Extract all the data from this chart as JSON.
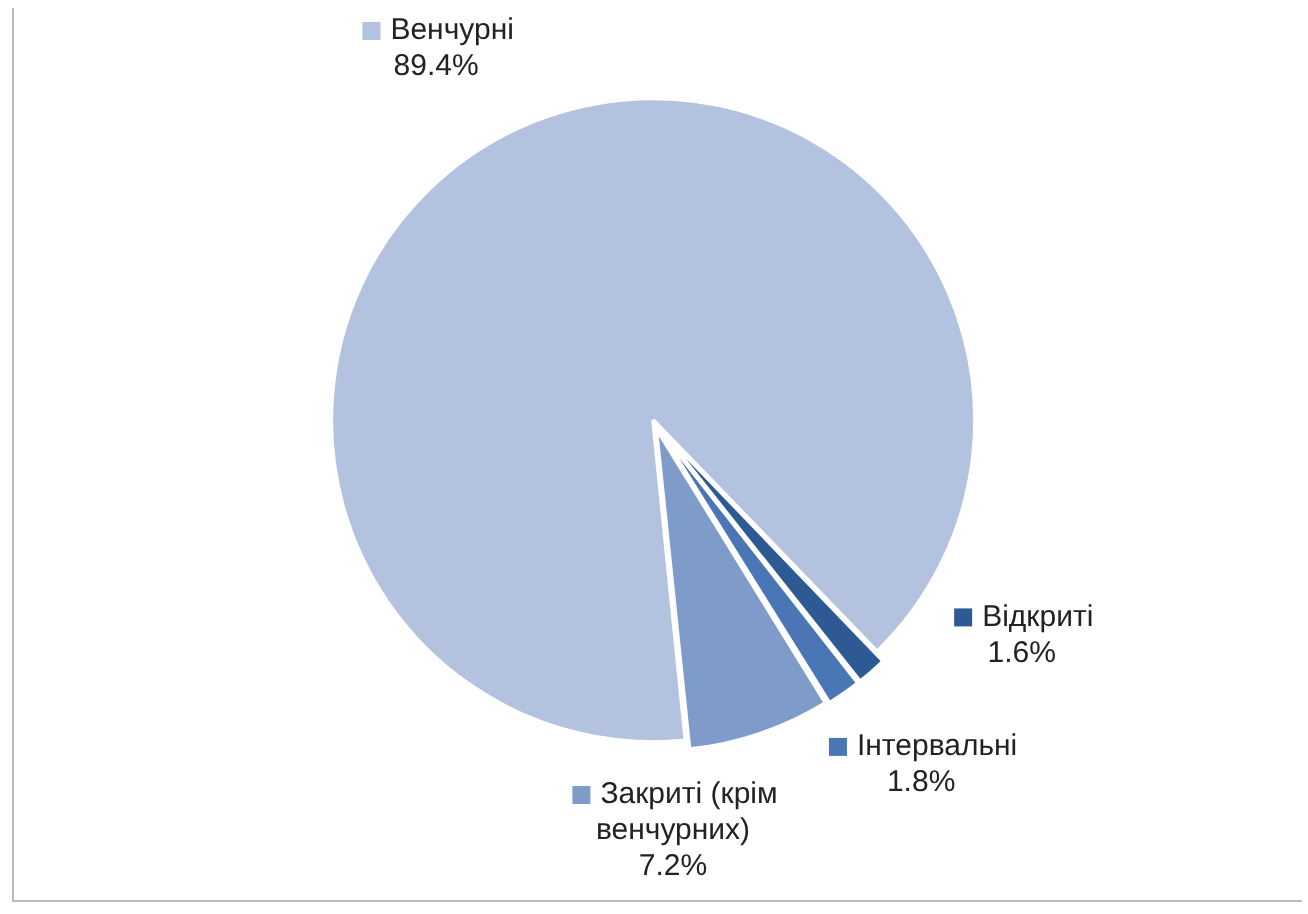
{
  "chart_data": {
    "type": "pie",
    "categories": [
      "Відкриті",
      "Інтервальні",
      "Закриті (крім венчурних)",
      "Венчурні"
    ],
    "values": [
      1.6,
      1.8,
      7.2,
      89.4
    ],
    "value_labels": [
      "1.6%",
      "1.8%",
      "7.2%",
      "89.4%"
    ],
    "colors": [
      "#2e5a94",
      "#4a76b5",
      "#7f9bc9",
      "#b3c2de"
    ],
    "legend": "bottom right"
  }
}
